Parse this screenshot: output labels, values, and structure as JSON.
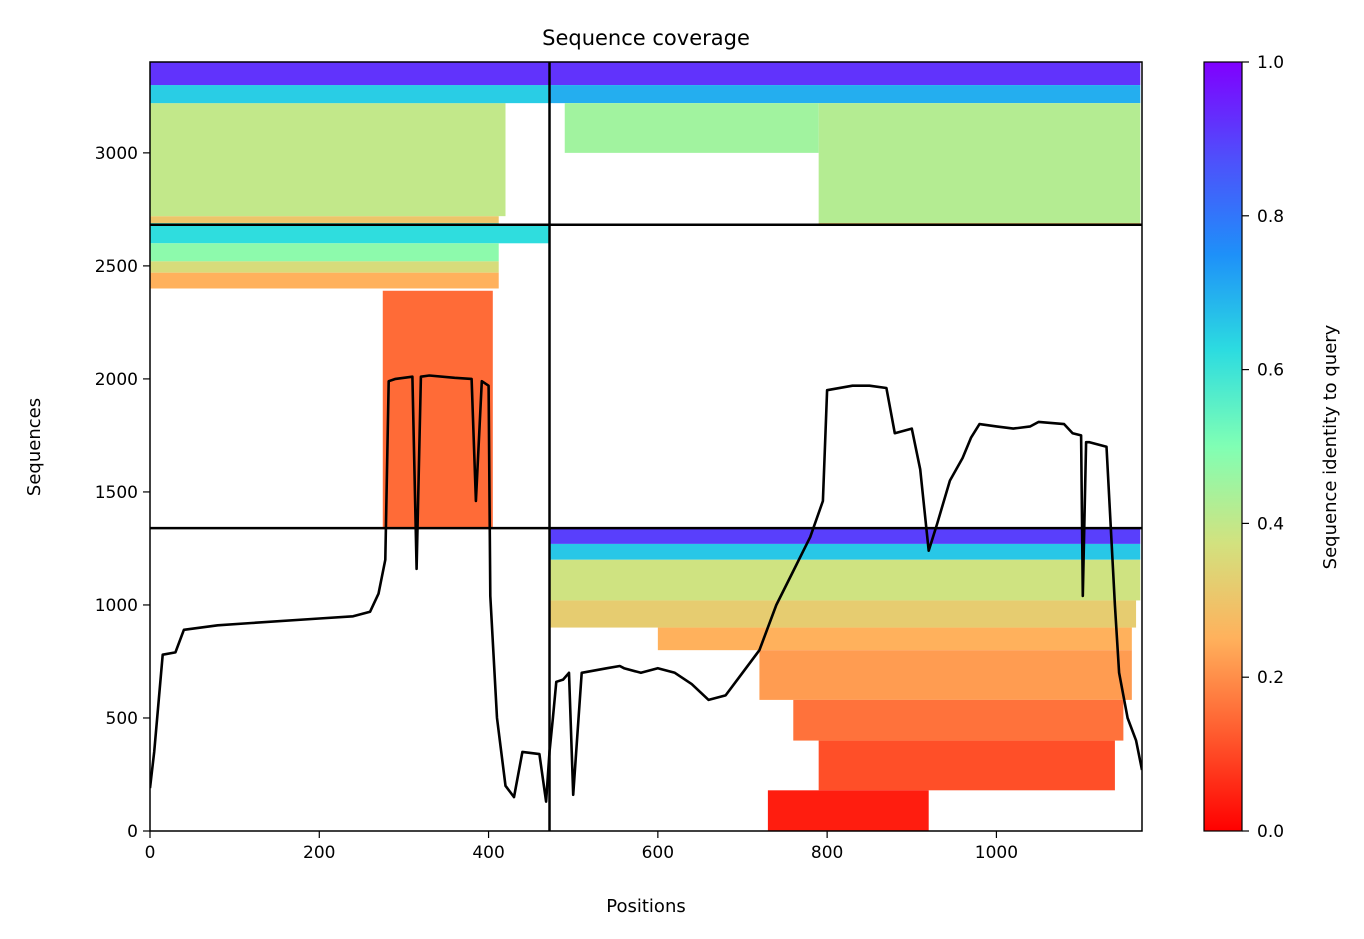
{
  "chart_data": {
    "type": "heatmap",
    "title": "Sequence coverage",
    "xlabel": "Positions",
    "ylabel": "Sequences",
    "xlim": [
      0,
      1172
    ],
    "ylim": [
      0,
      3402
    ],
    "xticks": [
      0,
      200,
      400,
      600,
      800,
      1000
    ],
    "yticks": [
      0,
      500,
      1000,
      1500,
      2000,
      2500,
      3000
    ],
    "grid": false,
    "colorbar": {
      "label": "Sequence identity to query",
      "colormap": "rainbow",
      "range": [
        0,
        1
      ],
      "ticks": [
        "0.0",
        "0.2",
        "0.4",
        "0.6",
        "0.8",
        "1.0"
      ],
      "stops": [
        "#ff0000",
        "#ff5a2e",
        "#ffb15c",
        "#d2e27f",
        "#80ffb4",
        "#2cdce0",
        "#1e90f9",
        "#4f4ffb",
        "#8000ff"
      ]
    },
    "block_boundaries": {
      "x": [
        472
      ],
      "y": [
        1340,
        2682
      ]
    },
    "coverage_blocks": [
      {
        "x": [
          0,
          412
        ],
        "y": [
          2682,
          2690
        ],
        "identity": 0.55
      },
      {
        "x": [
          0,
          412
        ],
        "y": [
          2690,
          2720
        ],
        "identity": 0.3
      },
      {
        "x": [
          0,
          420
        ],
        "y": [
          2720,
          3220
        ],
        "identity": 0.4
      },
      {
        "x": [
          0,
          472
        ],
        "y": [
          3220,
          3300
        ],
        "identity": 0.65
      },
      {
        "x": [
          0,
          472
        ],
        "y": [
          3300,
          3402
        ],
        "identity": 0.92
      },
      {
        "x": [
          472,
          1170
        ],
        "y": [
          3300,
          3402
        ],
        "identity": 0.92
      },
      {
        "x": [
          472,
          1170
        ],
        "y": [
          3220,
          3300
        ],
        "identity": 0.7
      },
      {
        "x": [
          790,
          1170
        ],
        "y": [
          2690,
          3220
        ],
        "identity": 0.42
      },
      {
        "x": [
          490,
          790
        ],
        "y": [
          3000,
          3220
        ],
        "identity": 0.45
      },
      {
        "x": [
          790,
          1170
        ],
        "y": [
          2682,
          2690
        ],
        "identity": 0.3
      },
      {
        "x": [
          0,
          472
        ],
        "y": [
          2600,
          2682
        ],
        "identity": 0.62
      },
      {
        "x": [
          0,
          412
        ],
        "y": [
          2520,
          2600
        ],
        "identity": 0.48
      },
      {
        "x": [
          0,
          412
        ],
        "y": [
          2470,
          2520
        ],
        "identity": 0.36
      },
      {
        "x": [
          0,
          412
        ],
        "y": [
          2400,
          2470
        ],
        "identity": 0.25
      },
      {
        "x": [
          275,
          405
        ],
        "y": [
          1340,
          2390
        ],
        "identity": 0.15
      },
      {
        "x": [
          472,
          1170
        ],
        "y": [
          1270,
          1340
        ],
        "identity": 0.9
      },
      {
        "x": [
          472,
          1170
        ],
        "y": [
          1200,
          1270
        ],
        "identity": 0.66
      },
      {
        "x": [
          472,
          1170
        ],
        "y": [
          1020,
          1200
        ],
        "identity": 0.38
      },
      {
        "x": [
          472,
          1165
        ],
        "y": [
          900,
          1020
        ],
        "identity": 0.32
      },
      {
        "x": [
          600,
          1160
        ],
        "y": [
          800,
          900
        ],
        "identity": 0.25
      },
      {
        "x": [
          720,
          1160
        ],
        "y": [
          580,
          800
        ],
        "identity": 0.22
      },
      {
        "x": [
          760,
          1150
        ],
        "y": [
          400,
          580
        ],
        "identity": 0.16
      },
      {
        "x": [
          790,
          1140
        ],
        "y": [
          180,
          400
        ],
        "identity": 0.11
      },
      {
        "x": [
          730,
          920
        ],
        "y": [
          0,
          180
        ],
        "identity": 0.04
      }
    ],
    "coverage_line": {
      "x": [
        0,
        5,
        15,
        30,
        40,
        60,
        80,
        120,
        200,
        240,
        260,
        270,
        278,
        282,
        290,
        310,
        315,
        320,
        330,
        360,
        380,
        385,
        392,
        400,
        402,
        410,
        420,
        430,
        440,
        460,
        468,
        472,
        476,
        480,
        488,
        495,
        500,
        510,
        540,
        555,
        560,
        580,
        600,
        620,
        640,
        660,
        680,
        700,
        720,
        740,
        760,
        780,
        795,
        800,
        830,
        850,
        870,
        880,
        900,
        910,
        920,
        930,
        945,
        960,
        970,
        980,
        1000,
        1020,
        1040,
        1050,
        1080,
        1090,
        1100,
        1102,
        1106,
        1110,
        1130,
        1140,
        1145,
        1155,
        1165,
        1172
      ],
      "y": [
        190,
        350,
        780,
        790,
        890,
        900,
        910,
        920,
        940,
        950,
        970,
        1050,
        1200,
        1990,
        2000,
        2010,
        1160,
        2010,
        2015,
        2005,
        2000,
        1460,
        1990,
        1970,
        1040,
        500,
        200,
        150,
        350,
        340,
        130,
        350,
        500,
        660,
        670,
        700,
        160,
        700,
        720,
        730,
        720,
        700,
        720,
        700,
        650,
        580,
        600,
        700,
        800,
        1000,
        1150,
        1300,
        1460,
        1950,
        1970,
        1970,
        1960,
        1760,
        1780,
        1600,
        1240,
        1360,
        1550,
        1650,
        1740,
        1800,
        1790,
        1780,
        1790,
        1810,
        1800,
        1760,
        1750,
        1040,
        1720,
        1720,
        1700,
        1000,
        700,
        500,
        400,
        270
      ]
    }
  }
}
